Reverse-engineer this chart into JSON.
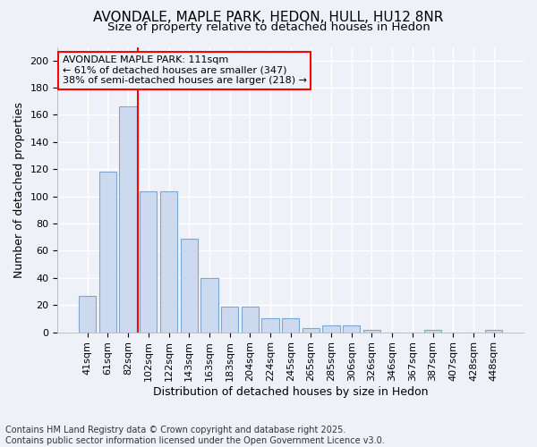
{
  "title_line1": "AVONDALE, MAPLE PARK, HEDON, HULL, HU12 8NR",
  "title_line2": "Size of property relative to detached houses in Hedon",
  "xlabel": "Distribution of detached houses by size in Hedon",
  "ylabel": "Number of detached properties",
  "categories": [
    "41sqm",
    "61sqm",
    "82sqm",
    "102sqm",
    "122sqm",
    "143sqm",
    "163sqm",
    "183sqm",
    "204sqm",
    "224sqm",
    "245sqm",
    "265sqm",
    "285sqm",
    "306sqm",
    "326sqm",
    "346sqm",
    "367sqm",
    "387sqm",
    "407sqm",
    "428sqm",
    "448sqm"
  ],
  "values": [
    27,
    118,
    166,
    104,
    104,
    69,
    40,
    19,
    19,
    10,
    10,
    3,
    5,
    5,
    2,
    0,
    0,
    2,
    0,
    0,
    2
  ],
  "bar_color": "#ccd9ee",
  "bar_edge_color": "#7ba7d0",
  "annotation_title": "AVONDALE MAPLE PARK: 111sqm",
  "annotation_line2": "← 61% of detached houses are smaller (347)",
  "annotation_line3": "38% of semi-detached houses are larger (218) →",
  "red_line_x": 2.5,
  "ylim": [
    0,
    210
  ],
  "yticks": [
    0,
    20,
    40,
    60,
    80,
    100,
    120,
    140,
    160,
    180,
    200
  ],
  "footer": "Contains HM Land Registry data © Crown copyright and database right 2025.\nContains public sector information licensed under the Open Government Licence v3.0.",
  "background_color": "#eef2f8",
  "grid_color": "#ffffff",
  "title_fontsize": 11,
  "subtitle_fontsize": 9.5,
  "axis_label_fontsize": 9,
  "tick_fontsize": 8,
  "annotation_fontsize": 8,
  "footer_fontsize": 7
}
